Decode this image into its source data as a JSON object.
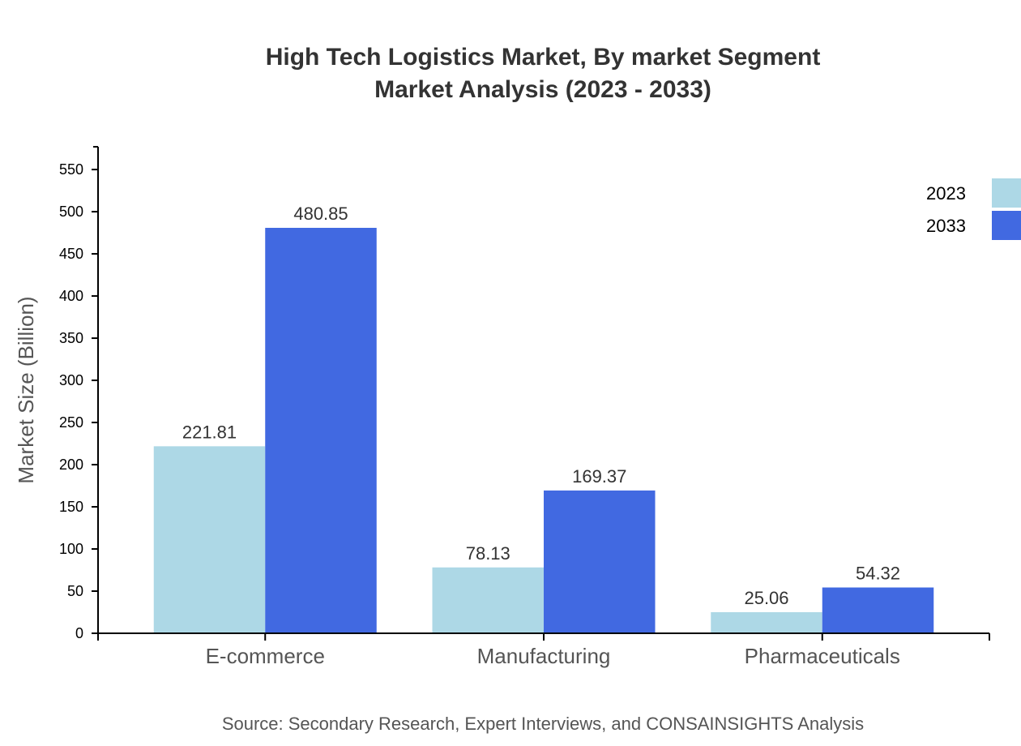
{
  "chart_data": {
    "type": "bar",
    "title": "High Tech Logistics Market, By market Segment",
    "subtitle": "Market Analysis (2023 - 2033)",
    "xlabel": "",
    "ylabel": "Market Size (Billion)",
    "categories": [
      "E-commerce",
      "Manufacturing",
      "Pharmaceuticals"
    ],
    "series": [
      {
        "name": "2023",
        "color": "#add8e6",
        "values": [
          221.81,
          78.13,
          25.06
        ]
      },
      {
        "name": "2033",
        "color": "#4169e1",
        "values": [
          480.85,
          169.37,
          54.32
        ]
      }
    ],
    "ylim": [
      0,
      577
    ],
    "yticks": [
      0,
      50,
      100,
      150,
      200,
      250,
      300,
      350,
      400,
      450,
      500,
      550
    ],
    "grid": false,
    "legend": "top-right",
    "source": "Source: Secondary Research, Expert Interviews, and CONSAINSIGHTS Analysis"
  }
}
